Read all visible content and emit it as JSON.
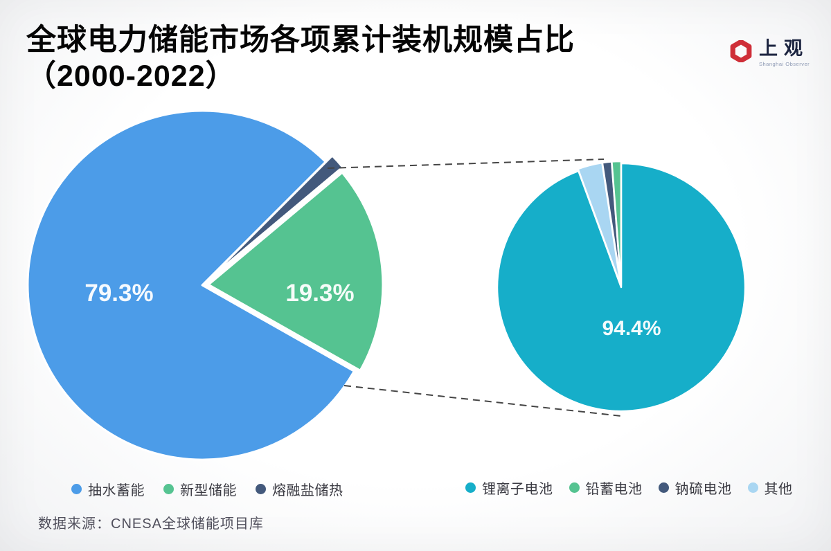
{
  "title": {
    "line1": "全球电力储能市场各项累计装机规模占比",
    "line2": "（2000-2022）"
  },
  "logo": {
    "brand": "上观",
    "subtitle": "Shanghai Observer",
    "icon": "hexagon-ring",
    "icon_color": "#cf2e38",
    "text_color": "#1c2440"
  },
  "source_note": "数据来源：CNESA全球储能项目库",
  "callout": {
    "style": "dashed",
    "color": "#454545"
  },
  "chart_data": [
    {
      "id": "overall-pie",
      "type": "pie",
      "unit": "%",
      "legend_position": "bottom",
      "slices": [
        {
          "label": "抽水蓄能",
          "value": 79.3,
          "pct_label": "79.3%",
          "color": "#4c9ce8"
        },
        {
          "label": "新型储能",
          "value": 19.3,
          "pct_label": "19.3%",
          "color": "#55c391"
        },
        {
          "label": "熔融盐储热",
          "value": 1.4,
          "estimated": true,
          "color": "#43597c"
        }
      ]
    },
    {
      "id": "breakdown-pie",
      "type": "pie",
      "unit": "%",
      "legend_position": "bottom",
      "slices": [
        {
          "label": "锂离子电池",
          "value": 94.4,
          "pct_label": "94.4%",
          "color": "#16aec9"
        },
        {
          "label": "铅蓄电池",
          "value": 1.2,
          "estimated": true,
          "color": "#55c391"
        },
        {
          "label": "钠硫电池",
          "value": 1.2,
          "estimated": true,
          "color": "#43597c"
        },
        {
          "label": "其他",
          "value": 3.2,
          "estimated": true,
          "color": "#a9d6f2"
        }
      ]
    }
  ]
}
